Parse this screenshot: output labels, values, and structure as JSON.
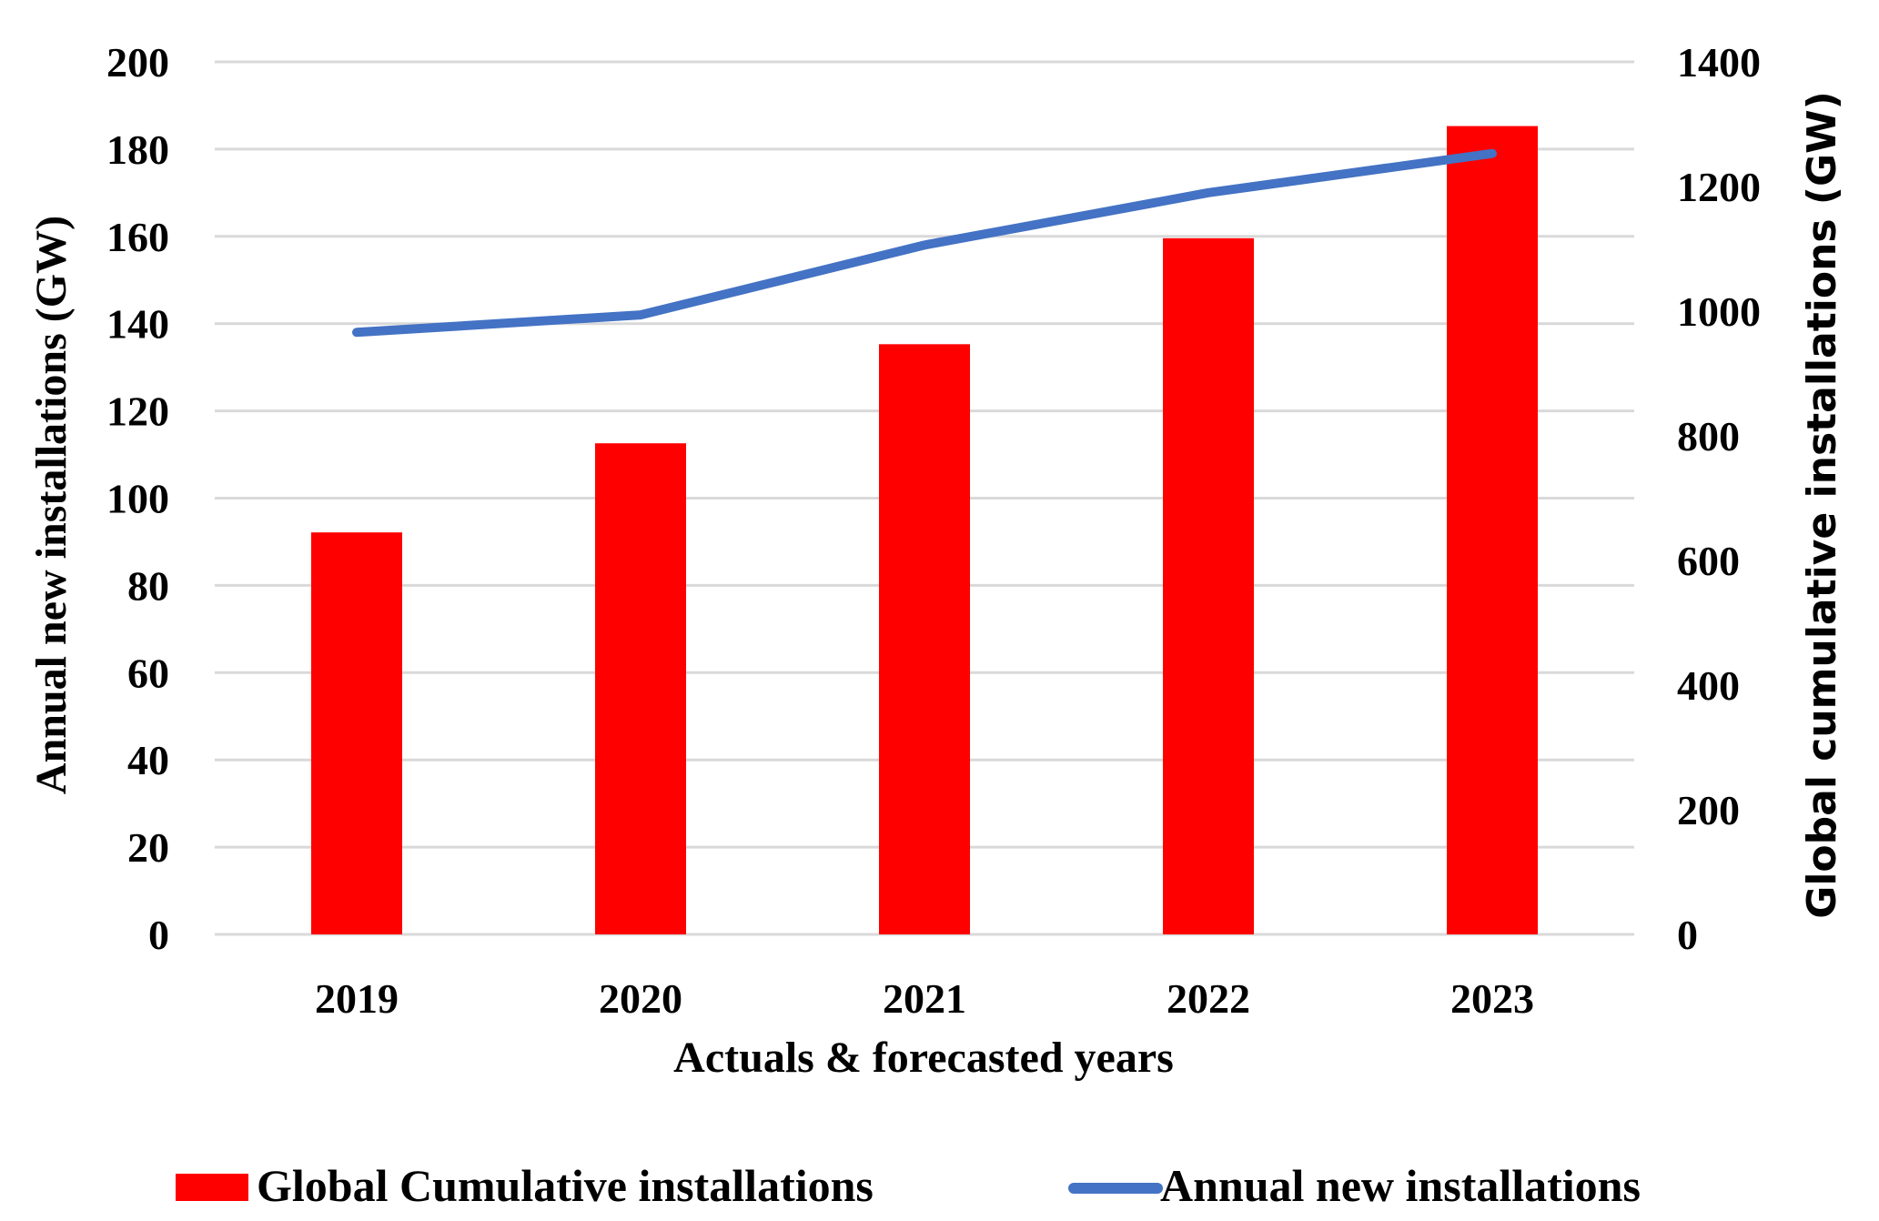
{
  "chart_data": {
    "type": "bar",
    "categories": [
      "2019",
      "2020",
      "2021",
      "2022",
      "2023"
    ],
    "series": [
      {
        "name": "Global Cumulative installations",
        "kind": "bar",
        "axis": "right",
        "color": "#ff0000",
        "values": [
          645,
          788,
          947,
          1117,
          1297
        ]
      },
      {
        "name": "Annual new installations",
        "kind": "line",
        "axis": "left",
        "color": "#4472c4",
        "values": [
          138,
          142,
          158,
          170,
          179
        ]
      }
    ],
    "xlabel": "Actuals & forecasted years",
    "ylabel_left": "Annual new installations (GW)",
    "ylabel_right": "Global cumulative installations (GW)",
    "ylim_left": [
      0,
      200
    ],
    "ylim_right": [
      0,
      1400
    ],
    "yticks_left": [
      "0",
      "20",
      "40",
      "60",
      "80",
      "100",
      "120",
      "140",
      "160",
      "180",
      "200"
    ],
    "yticks_right": [
      "0",
      "200",
      "400",
      "600",
      "800",
      "1000",
      "1200",
      "1400"
    ],
    "grid": true,
    "legend_position": "bottom"
  }
}
